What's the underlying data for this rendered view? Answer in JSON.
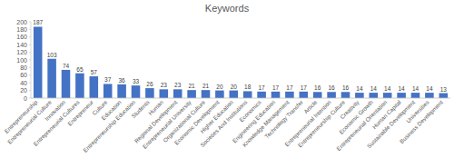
{
  "chart_data": {
    "type": "bar",
    "title": "Keywords",
    "categories": [
      "Entrepreneurship",
      "Entrepreneurial Culture",
      "Innovation",
      "Entrepreneurial Cultures",
      "Entrepreneur",
      "Culture",
      "Education",
      "Entrepreneurship Education",
      "Students",
      "Human",
      "Regional Development",
      "Entrepreneurial University",
      "Organizational Culture",
      "Economic Development",
      "Higher Education",
      "Societies And Institutions",
      "Economics",
      "Engineering Education",
      "Knowledge Management",
      "Technology Transfer",
      "Article",
      "Entrepreneurial Intention",
      "Entrepreneurship Culture",
      "Creativity",
      "Economic Growth",
      "Entrepreneurial Orientation",
      "Human Capital",
      "Sustainable Development",
      "Universities",
      "Business Development"
    ],
    "values": [
      187,
      103,
      74,
      65,
      57,
      37,
      36,
      33,
      26,
      23,
      23,
      21,
      21,
      20,
      20,
      18,
      17,
      17,
      17,
      17,
      16,
      16,
      16,
      14,
      14,
      14,
      14,
      14,
      14,
      13
    ],
    "color": "#4472c4",
    "ylim": [
      0,
      200
    ],
    "yticks": [
      0,
      20,
      40,
      60,
      80,
      100,
      120,
      140,
      160,
      180,
      200
    ],
    "grid": false,
    "data_labels": true
  }
}
